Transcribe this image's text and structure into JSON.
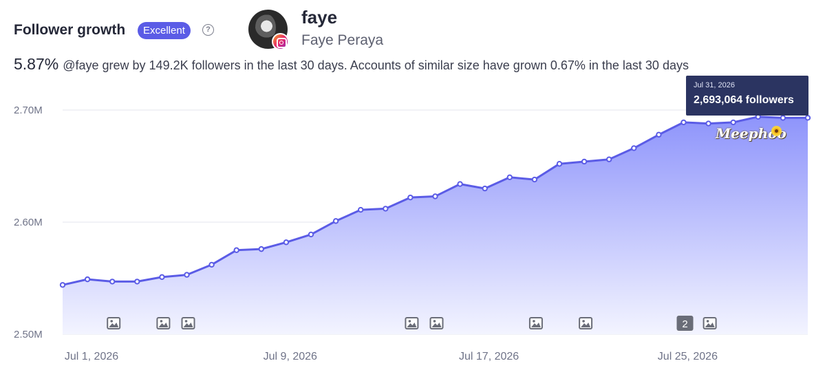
{
  "header": {
    "title": "Follower growth",
    "badge": "Excellent",
    "help_icon": "help-circle-icon",
    "profile": {
      "handle": "faye",
      "name": "Faye Peraya",
      "platform_icon": "instagram-icon"
    },
    "growth_pct": "5.87%",
    "description": "@faye grew by 149.2K followers in the last 30 days. Accounts of similar size have grown 0.67% in the last 30 days"
  },
  "tooltip": {
    "date": "Jul 31, 2026",
    "value": "2,693,064 followers"
  },
  "watermark": "Meephoo",
  "colors": {
    "line": "#5b5ce6",
    "fill_top": "#8e94fb",
    "fill_bottom": "#f3f4ff",
    "tooltip_bg": "#2b3461"
  },
  "chart_data": {
    "type": "area",
    "title": "",
    "xlabel": "",
    "ylabel": "",
    "ylim": [
      2500000,
      2700000
    ],
    "y_ticks": [
      {
        "value": 2700000,
        "label": "2.70M"
      },
      {
        "value": 2600000,
        "label": "2.60M"
      },
      {
        "value": 2500000,
        "label": "2.50M"
      }
    ],
    "x_ticks": [
      {
        "day": 1,
        "label": "Jul 1, 2026"
      },
      {
        "day": 9,
        "label": "Jul 9, 2026"
      },
      {
        "day": 17,
        "label": "Jul 17, 2026"
      },
      {
        "day": 25,
        "label": "Jul 25, 2026"
      }
    ],
    "x_unit": "day of July 2026",
    "grid": true,
    "series": [
      {
        "x": [
          1,
          2,
          3,
          4,
          5,
          6,
          7,
          8,
          9,
          10,
          11,
          12,
          13,
          14,
          15,
          16,
          17,
          18,
          19,
          20,
          21,
          22,
          23,
          24,
          25,
          26,
          27,
          28,
          29,
          30,
          31
        ],
        "values": [
          2544000,
          2549000,
          2547000,
          2547000,
          2551000,
          2553000,
          2562000,
          2575000,
          2576000,
          2582000,
          2589000,
          2601000,
          2611000,
          2612000,
          2622000,
          2623000,
          2634000,
          2630000,
          2640000,
          2638000,
          2652000,
          2654000,
          2656000,
          2666000,
          2678000,
          2689000,
          2688000,
          2689000,
          2694000,
          2693000,
          2693064
        ]
      }
    ],
    "post_markers": [
      {
        "day": 3,
        "count": 1
      },
      {
        "day": 5,
        "count": 1
      },
      {
        "day": 6,
        "count": 1
      },
      {
        "day": 15,
        "count": 1
      },
      {
        "day": 16,
        "count": 1
      },
      {
        "day": 20,
        "count": 1
      },
      {
        "day": 22,
        "count": 1
      },
      {
        "day": 26,
        "count": 2
      },
      {
        "day": 27,
        "count": 1
      }
    ]
  }
}
